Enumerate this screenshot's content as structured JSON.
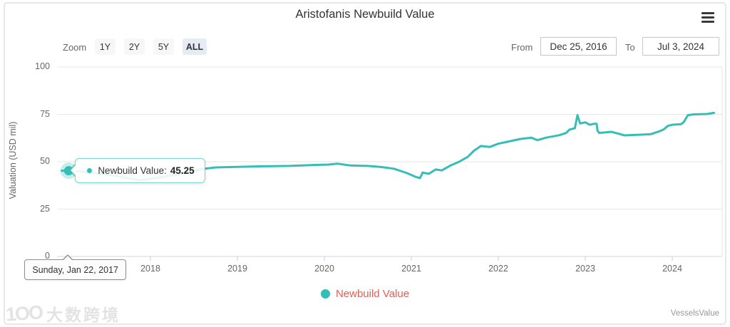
{
  "title": "Aristofanis Newbuild Value",
  "range_selector": {
    "zoom_label": "Zoom",
    "buttons": [
      {
        "label": "1Y",
        "selected": false
      },
      {
        "label": "2Y",
        "selected": false
      },
      {
        "label": "5Y",
        "selected": false
      },
      {
        "label": "ALL",
        "selected": true
      }
    ],
    "from_label": "From",
    "from_value": "Dec 25, 2016",
    "to_label": "To",
    "to_value": "Jul 3, 2024"
  },
  "tooltip": {
    "series_label": "Newbuild Value:",
    "value": "45.25",
    "date_label": "Sunday, Jan 22, 2017"
  },
  "legend": {
    "label": "Newbuild Value"
  },
  "credits": "VesselsValue",
  "watermark_logo": "1OO",
  "watermark_text": "大数跨境",
  "colors": {
    "line": "#35beb7",
    "legend_text": "#dc6156",
    "grid": "#e6e6e6",
    "axis_line": "#ccd6eb",
    "selected_button_bg": "#e6ebf5"
  },
  "chart_data": {
    "type": "line",
    "title": "Aristofanis Newbuild Value",
    "xlabel": "",
    "ylabel": "Valuation (USD mil)",
    "ylim": [
      0,
      100
    ],
    "y_ticks": [
      0,
      25,
      50,
      75,
      100
    ],
    "x_ticks": [
      2018,
      2019,
      2020,
      2021,
      2022,
      2023,
      2024
    ],
    "x_range_years": [
      2016.98,
      2024.5
    ],
    "grid": true,
    "legend_position": "bottom",
    "series": [
      {
        "name": "Newbuild Value",
        "color": "#35beb7",
        "points": [
          [
            2016.98,
            45.25
          ],
          [
            2017.06,
            45.25
          ],
          [
            2017.2,
            44.8
          ],
          [
            2017.4,
            43.8
          ],
          [
            2017.6,
            42.5
          ],
          [
            2017.75,
            41.2
          ],
          [
            2017.88,
            40.3
          ],
          [
            2018.0,
            41.0
          ],
          [
            2018.15,
            42.0
          ],
          [
            2018.3,
            43.2
          ],
          [
            2018.45,
            44.8
          ],
          [
            2018.6,
            46.2
          ],
          [
            2018.75,
            47.0
          ],
          [
            2019.0,
            47.3
          ],
          [
            2019.3,
            47.6
          ],
          [
            2019.6,
            47.8
          ],
          [
            2019.9,
            48.3
          ],
          [
            2020.05,
            48.5
          ],
          [
            2020.15,
            49.0
          ],
          [
            2020.3,
            48.0
          ],
          [
            2020.5,
            47.8
          ],
          [
            2020.65,
            47.2
          ],
          [
            2020.8,
            46.3
          ],
          [
            2020.95,
            44.0
          ],
          [
            2021.05,
            42.0
          ],
          [
            2021.1,
            41.4
          ],
          [
            2021.13,
            44.3
          ],
          [
            2021.2,
            43.6
          ],
          [
            2021.28,
            45.9
          ],
          [
            2021.35,
            45.4
          ],
          [
            2021.45,
            48.0
          ],
          [
            2021.55,
            50.0
          ],
          [
            2021.65,
            52.6
          ],
          [
            2021.72,
            55.8
          ],
          [
            2021.8,
            58.3
          ],
          [
            2021.9,
            57.8
          ],
          [
            2022.0,
            59.5
          ],
          [
            2022.1,
            60.5
          ],
          [
            2022.25,
            62.0
          ],
          [
            2022.38,
            62.7
          ],
          [
            2022.45,
            61.4
          ],
          [
            2022.55,
            62.7
          ],
          [
            2022.7,
            64.0
          ],
          [
            2022.78,
            65.2
          ],
          [
            2022.82,
            67.0
          ],
          [
            2022.88,
            67.7
          ],
          [
            2022.91,
            74.6
          ],
          [
            2022.94,
            70.2
          ],
          [
            2023.0,
            70.8
          ],
          [
            2023.05,
            69.5
          ],
          [
            2023.1,
            70.0
          ],
          [
            2023.13,
            70.0
          ],
          [
            2023.14,
            66.4
          ],
          [
            2023.16,
            65.2
          ],
          [
            2023.3,
            65.8
          ],
          [
            2023.38,
            64.8
          ],
          [
            2023.45,
            63.9
          ],
          [
            2023.6,
            64.2
          ],
          [
            2023.75,
            64.5
          ],
          [
            2023.85,
            66.0
          ],
          [
            2023.9,
            67.0
          ],
          [
            2023.95,
            68.9
          ],
          [
            2024.0,
            69.5
          ],
          [
            2024.1,
            69.8
          ],
          [
            2024.13,
            70.8
          ],
          [
            2024.18,
            74.6
          ],
          [
            2024.25,
            75.0
          ],
          [
            2024.4,
            75.2
          ],
          [
            2024.48,
            75.8
          ]
        ]
      }
    ],
    "hover_point": {
      "x": 2017.06,
      "y": 45.25,
      "date": "Sunday, Jan 22, 2017",
      "value": "45.25"
    }
  }
}
